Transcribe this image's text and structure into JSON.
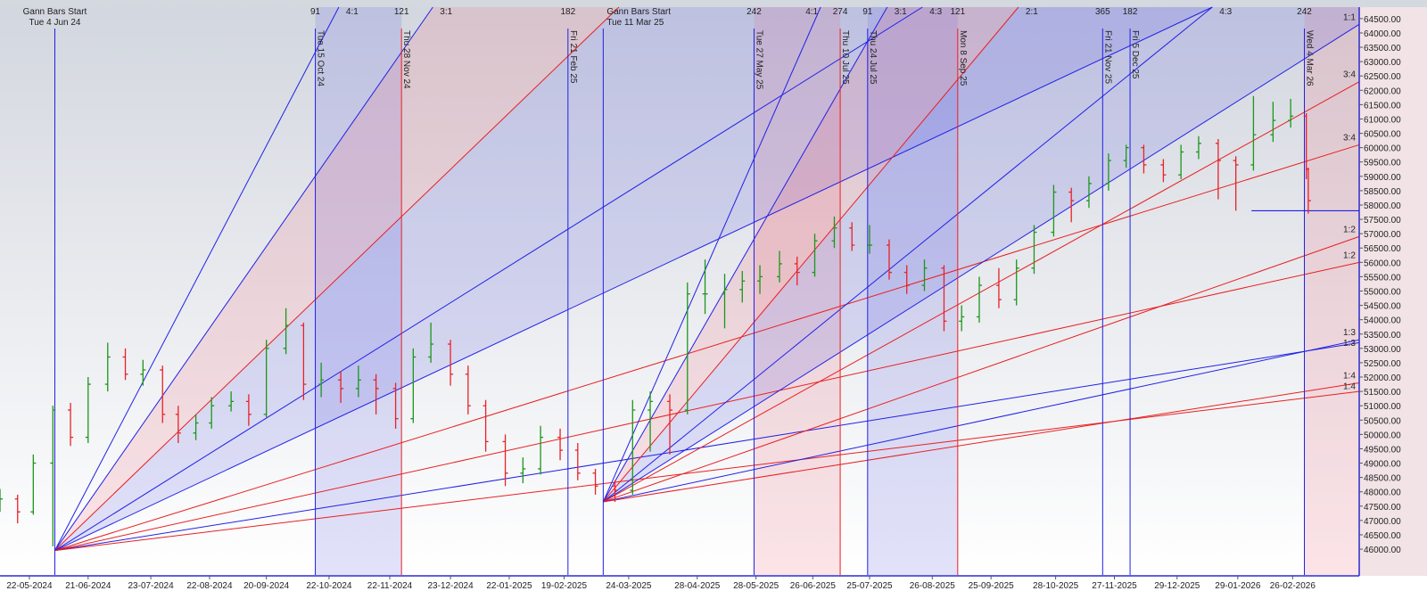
{
  "chart_data": {
    "type": "ohlc-bar",
    "xlim": [
      "07-05-2024",
      "01-04-2026"
    ],
    "ylim": [
      45100,
      64900
    ],
    "colors": {
      "up": "#1c961c",
      "down": "#e82228",
      "blue_line": "#2020e6",
      "red_line": "#e82020",
      "blue_fill": "rgba(110,110,230,0.20)",
      "pink_fill": "rgba(240,120,135,0.20)"
    },
    "x_ticks": [
      "22-05-2024",
      "21-06-2024",
      "23-07-2024",
      "22-08-2024",
      "20-09-2024",
      "22-10-2024",
      "22-11-2024",
      "23-12-2024",
      "22-01-2025",
      "19-02-2025",
      "24-03-2025",
      "28-04-2025",
      "28-05-2025",
      "26-06-2025",
      "25-07-2025",
      "26-08-2025",
      "25-09-2025",
      "28-10-2025",
      "27-11-2025",
      "29-12-2025",
      "29-01-2026",
      "26-02-2026"
    ],
    "y_ticks": [
      "64500.00",
      "64000.00",
      "63500.00",
      "63000.00",
      "62500.00",
      "62000.00",
      "61500.00",
      "61000.00",
      "60500.00",
      "60000.00",
      "59500.00",
      "59000.00",
      "58500.00",
      "58000.00",
      "57500.00",
      "57000.00",
      "56500.00",
      "56000.00",
      "55500.00",
      "55000.00",
      "54500.00",
      "54000.00",
      "53500.00",
      "53000.00",
      "52500.00",
      "52000.00",
      "51500.00",
      "51000.00",
      "50500.00",
      "50000.00",
      "49500.00",
      "49000.00",
      "48500.00",
      "48000.00",
      "47500.00",
      "47000.00",
      "46500.00",
      "46000.00"
    ],
    "bars": [
      [
        "07-05-2024",
        47600,
        48100,
        47300,
        47750
      ],
      [
        "16-05-2024",
        47750,
        47900,
        46900,
        47300
      ],
      [
        "24-05-2024",
        47300,
        49300,
        47200,
        49000
      ],
      [
        "03-06-2024",
        49000,
        51000,
        46100,
        50850
      ],
      [
        "12-06-2024",
        50850,
        51100,
        49600,
        49900
      ],
      [
        "21-06-2024",
        49900,
        52000,
        49700,
        51750
      ],
      [
        "01-07-2024",
        51750,
        53200,
        51500,
        52700
      ],
      [
        "10-07-2024",
        52700,
        53000,
        51900,
        52100
      ],
      [
        "19-07-2024",
        52100,
        52600,
        51700,
        52250
      ],
      [
        "29-07-2024",
        52250,
        52400,
        50400,
        50700
      ],
      [
        "06-08-2024",
        50700,
        51000,
        49700,
        50050
      ],
      [
        "15-08-2024",
        50050,
        50700,
        49800,
        50400
      ],
      [
        "23-08-2024",
        50400,
        51300,
        50200,
        51000
      ],
      [
        "02-09-2024",
        51000,
        51500,
        50800,
        51150
      ],
      [
        "11-09-2024",
        51150,
        51400,
        50300,
        50700
      ],
      [
        "20-09-2024",
        50700,
        53300,
        50600,
        53000
      ],
      [
        "30-09-2024",
        53000,
        54400,
        52800,
        53800
      ],
      [
        "09-10-2024",
        53800,
        53900,
        51200,
        51750
      ],
      [
        "18-10-2024",
        51750,
        52500,
        51300,
        51900
      ],
      [
        "28-10-2024",
        51900,
        52200,
        51100,
        51600
      ],
      [
        "06-11-2024",
        51600,
        52400,
        51300,
        51900
      ],
      [
        "15-11-2024",
        51900,
        52100,
        50700,
        51600
      ],
      [
        "25-11-2024",
        51600,
        51800,
        50200,
        50550
      ],
      [
        "04-12-2024",
        50550,
        53000,
        50400,
        52700
      ],
      [
        "13-12-2024",
        52700,
        53900,
        52500,
        53150
      ],
      [
        "23-12-2024",
        53150,
        53300,
        51700,
        52100
      ],
      [
        "01-01-2025",
        52100,
        52400,
        50700,
        51000
      ],
      [
        "10-01-2025",
        51000,
        51200,
        49400,
        49750
      ],
      [
        "20-01-2025",
        49750,
        50000,
        48200,
        48650
      ],
      [
        "29-01-2025",
        48650,
        49200,
        48300,
        48800
      ],
      [
        "07-02-2025",
        48800,
        50300,
        48600,
        49900
      ],
      [
        "17-02-2025",
        49900,
        50200,
        49100,
        49450
      ],
      [
        "26-02-2025",
        49450,
        49700,
        48400,
        48650
      ],
      [
        "07-03-2025",
        48650,
        48800,
        47900,
        48200
      ],
      [
        "17-03-2025",
        48200,
        48400,
        47650,
        48050
      ],
      [
        "26-03-2025",
        48050,
        51200,
        47900,
        50850
      ],
      [
        "04-04-2025",
        50850,
        51500,
        49400,
        51150
      ],
      [
        "14-04-2025",
        51150,
        51400,
        49300,
        50850
      ],
      [
        "23-04-2025",
        50850,
        55300,
        50700,
        54900
      ],
      [
        "02-05-2025",
        54900,
        56100,
        54200,
        54900
      ],
      [
        "12-05-2025",
        54900,
        55600,
        53700,
        55050
      ],
      [
        "21-05-2025",
        55050,
        55700,
        54600,
        55350
      ],
      [
        "30-05-2025",
        55350,
        55900,
        54900,
        55500
      ],
      [
        "09-06-2025",
        55500,
        56400,
        55300,
        55950
      ],
      [
        "18-06-2025",
        55950,
        56200,
        55200,
        55650
      ],
      [
        "27-06-2025",
        55650,
        57000,
        55500,
        56750
      ],
      [
        "07-07-2025",
        56750,
        57600,
        56500,
        57200
      ],
      [
        "16-07-2025",
        57200,
        57400,
        56400,
        56600
      ],
      [
        "25-07-2025",
        56600,
        57300,
        56300,
        56600
      ],
      [
        "04-08-2025",
        56600,
        56800,
        55400,
        55650
      ],
      [
        "13-08-2025",
        55650,
        55900,
        54900,
        55200
      ],
      [
        "22-08-2025",
        55200,
        56100,
        55000,
        55800
      ],
      [
        "01-09-2025",
        55800,
        55900,
        53600,
        53950
      ],
      [
        "10-09-2025",
        53950,
        54500,
        53600,
        54100
      ],
      [
        "19-09-2025",
        54100,
        55500,
        53900,
        55200
      ],
      [
        "29-09-2025",
        55200,
        55800,
        54400,
        54700
      ],
      [
        "08-10-2025",
        54700,
        56100,
        54500,
        55800
      ],
      [
        "17-10-2025",
        55800,
        57300,
        55600,
        57050
      ],
      [
        "27-10-2025",
        57050,
        58700,
        56900,
        58450
      ],
      [
        "05-11-2025",
        58450,
        58600,
        57400,
        58150
      ],
      [
        "14-11-2025",
        58150,
        59000,
        57900,
        58750
      ],
      [
        "24-11-2025",
        58750,
        59800,
        58500,
        59550
      ],
      [
        "03-12-2025",
        59550,
        60100,
        59300,
        60000
      ],
      [
        "12-12-2025",
        60000,
        60100,
        59100,
        59400
      ],
      [
        "22-12-2025",
        59400,
        59600,
        58800,
        59050
      ],
      [
        "31-12-2025",
        59050,
        60100,
        58900,
        59850
      ],
      [
        "09-01-2026",
        59850,
        60400,
        59600,
        60150
      ],
      [
        "19-01-2026",
        60150,
        60300,
        58200,
        59550
      ],
      [
        "28-01-2026",
        59550,
        59700,
        57800,
        59400
      ],
      [
        "06-02-2026",
        59400,
        61800,
        59200,
        60450
      ],
      [
        "16-02-2026",
        60450,
        61600,
        60200,
        60950
      ],
      [
        "25-02-2026",
        60950,
        61700,
        60700,
        61100
      ],
      [
        "05-03-2026",
        61100,
        61200,
        58900,
        59250
      ],
      [
        "06-03-2026",
        59250,
        59300,
        57700,
        58150
      ]
    ],
    "gann_starts": [
      {
        "title": "Gann Bars Start",
        "date_label": "Tue 4 Jun 24",
        "date": "04-06-2024"
      },
      {
        "title": "Gann Bars Start",
        "date_label": "Tue 11 Mar 25",
        "date": "11-03-2025"
      }
    ],
    "event_lines": [
      {
        "date": "15-10-2024",
        "label": "Tue 15 Oct 24",
        "count": "91",
        "color": "blue"
      },
      {
        "date": "28-11-2024",
        "label": "Thu 28 Nov 24",
        "count": "121",
        "color": "red"
      },
      {
        "date": "21-02-2025",
        "label": "Fri 21 Feb 25",
        "count": "182",
        "color": "blue"
      },
      {
        "date": "27-05-2025",
        "label": "Tue 27 May 25",
        "count": "242",
        "color": "blue"
      },
      {
        "date": "10-07-2025",
        "label": "Thu 10 Jul 25",
        "count": "274",
        "color": "red"
      },
      {
        "date": "24-07-2025",
        "label": "Thu 24 Jul 25",
        "count": "91",
        "color": "blue"
      },
      {
        "date": "08-09-2025",
        "label": "Mon 8 Sep 25",
        "count": "121",
        "color": "red"
      },
      {
        "date": "21-11-2025",
        "label": "Fri 21 Nov 25",
        "count": "365",
        "color": "blue"
      },
      {
        "date": "05-12-2025",
        "label": "Fri 5 Dec 25",
        "count": "182",
        "color": "blue"
      },
      {
        "date": "04-03-2026",
        "label": "Wed 4 Mar 26",
        "count": "242",
        "color": "blue"
      }
    ],
    "bands": [
      {
        "from": "15-10-2024",
        "to": "28-11-2024",
        "color": "blue"
      },
      {
        "from": "27-05-2025",
        "to": "10-07-2025",
        "color": "pink"
      },
      {
        "from": "24-07-2025",
        "to": "08-09-2025",
        "color": "blue"
      },
      {
        "from": "04-03-2026",
        "to": "01-04-2026",
        "color": "pink"
      }
    ],
    "fans": [
      {
        "origin": {
          "date": "04-06-2024",
          "price": 45950
        },
        "lines": [
          {
            "ratio": "4:1",
            "color": "blue",
            "end": {
              "date": "27-10-2024",
              "price": 64900
            },
            "label_at": "top"
          },
          {
            "ratio": "3:1",
            "color": "blue",
            "end": {
              "date": "14-12-2024",
              "price": 64900
            },
            "label_at": "top"
          },
          {
            "ratio": "2:1",
            "color": "red",
            "end": {
              "date": "19-03-2025",
              "price": 64900
            },
            "label_at": "none"
          },
          {
            "ratio": "4:3",
            "color": "blue",
            "end": {
              "date": "21-08-2025",
              "price": 64900
            },
            "label_at": "top"
          },
          {
            "ratio": "",
            "color": "blue",
            "end": {
              "date": "16-01-2026",
              "price": 64900
            },
            "label_at": "none"
          },
          {
            "ratio": "3:4",
            "color": "red",
            "end": {
              "date": "01-04-2026",
              "price": 60100
            },
            "label_at": "right"
          },
          {
            "ratio": "1:2",
            "color": "red",
            "end": {
              "date": "01-04-2026",
              "price": 56000
            },
            "label_at": "right"
          },
          {
            "ratio": "1:3",
            "color": "blue",
            "end": {
              "date": "01-04-2026",
              "price": 53200
            },
            "label_at": "right"
          },
          {
            "ratio": "1:4",
            "color": "red",
            "end": {
              "date": "01-04-2026",
              "price": 51500
            },
            "label_at": "right"
          }
        ],
        "wedges": [
          [
            1,
            2,
            "pink"
          ],
          [
            2,
            3,
            "blue"
          ],
          [
            3,
            4,
            "blue"
          ]
        ]
      },
      {
        "origin": {
          "date": "11-03-2025",
          "price": 47650
        },
        "lines": [
          {
            "ratio": "4:1",
            "color": "blue",
            "end": {
              "date": "30-06-2025",
              "price": 64900
            },
            "label_at": "top"
          },
          {
            "ratio": "3:1",
            "color": "blue",
            "end": {
              "date": "03-08-2025",
              "price": 64900
            },
            "label_at": "top"
          },
          {
            "ratio": "2:1",
            "color": "red",
            "end": {
              "date": "09-10-2025",
              "price": 64900
            },
            "label_at": "top"
          },
          {
            "ratio": "4:3",
            "color": "blue",
            "end": {
              "date": "16-01-2026",
              "price": 64900
            },
            "label_at": "top"
          },
          {
            "ratio": "1:1",
            "color": "blue",
            "end": {
              "date": "01-04-2026",
              "price": 64300
            },
            "label_at": "right"
          },
          {
            "ratio": "3:4",
            "color": "red",
            "end": {
              "date": "01-04-2026",
              "price": 62300
            },
            "label_at": "right"
          },
          {
            "ratio": "1:2",
            "color": "red",
            "end": {
              "date": "01-04-2026",
              "price": 56900
            },
            "label_at": "right"
          },
          {
            "ratio": "1:3",
            "color": "blue",
            "end": {
              "date": "01-04-2026",
              "price": 53300
            },
            "label_at": "right"
          },
          {
            "ratio": "1:4",
            "color": "red",
            "end": {
              "date": "01-04-2026",
              "price": 51800
            },
            "label_at": "right"
          }
        ],
        "wedges": [
          [
            1,
            2,
            "pink"
          ],
          [
            2,
            3,
            "blue"
          ],
          [
            3,
            4,
            "blue"
          ]
        ]
      }
    ],
    "level_line": {
      "from": "05-02-2026",
      "price": 57800,
      "color": "blue"
    }
  }
}
